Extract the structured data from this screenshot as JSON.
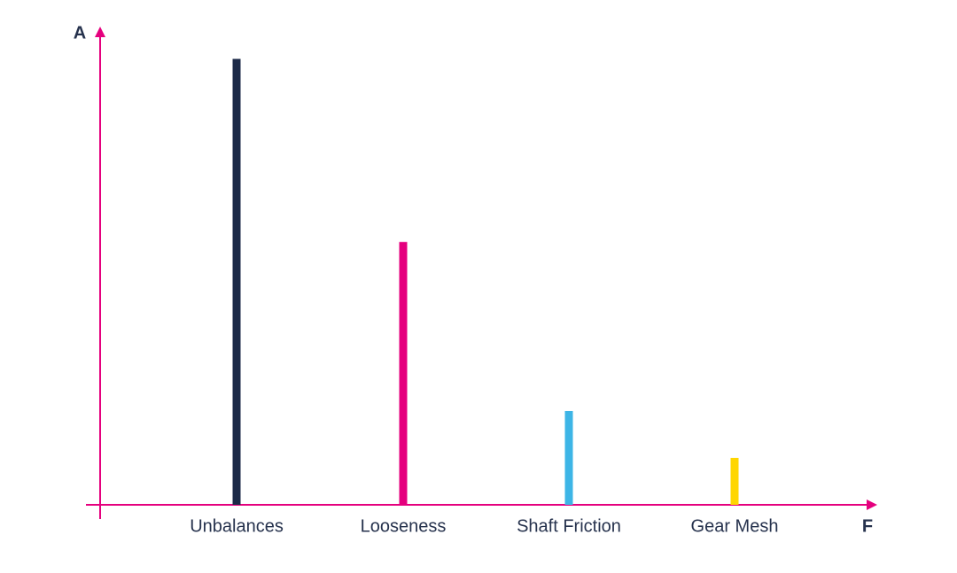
{
  "chart_data": {
    "type": "bar",
    "xlabel": "F",
    "ylabel": "A",
    "categories": [
      "Unbalances",
      "Looseness",
      "Shaft Friction",
      "Gear Mesh"
    ],
    "values": [
      95,
      56,
      20,
      10
    ],
    "colors": [
      "#1c2a48",
      "#e5007e",
      "#3db5e6",
      "#ffd600"
    ],
    "axis_color": "#e5007e",
    "ylim": [
      0,
      100
    ]
  }
}
